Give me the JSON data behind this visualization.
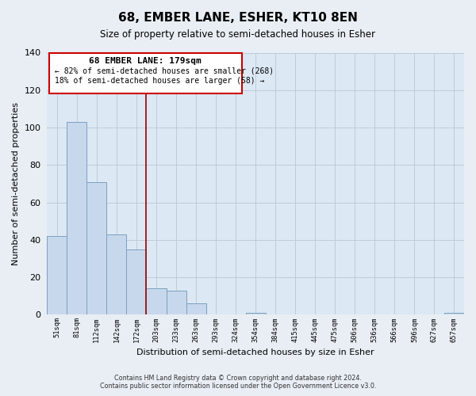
{
  "title": "68, EMBER LANE, ESHER, KT10 8EN",
  "subtitle": "Size of property relative to semi-detached houses in Esher",
  "xlabel": "Distribution of semi-detached houses by size in Esher",
  "ylabel": "Number of semi-detached properties",
  "bar_labels": [
    "51sqm",
    "81sqm",
    "112sqm",
    "142sqm",
    "172sqm",
    "203sqm",
    "233sqm",
    "263sqm",
    "293sqm",
    "324sqm",
    "354sqm",
    "384sqm",
    "415sqm",
    "445sqm",
    "475sqm",
    "506sqm",
    "536sqm",
    "566sqm",
    "596sqm",
    "627sqm",
    "657sqm"
  ],
  "bar_values": [
    42,
    103,
    71,
    43,
    35,
    14,
    13,
    6,
    0,
    0,
    1,
    0,
    0,
    0,
    0,
    0,
    0,
    0,
    0,
    0,
    1
  ],
  "bar_color": "#c8d8ec",
  "bar_edge_color": "#7ba0c0",
  "vline_x": 4.5,
  "vline_color": "#990000",
  "annotation_title": "68 EMBER LANE: 179sqm",
  "annotation_line1": "← 82% of semi-detached houses are smaller (268)",
  "annotation_line2": "18% of semi-detached houses are larger (58) →",
  "ylim": [
    0,
    140
  ],
  "yticks": [
    0,
    20,
    40,
    60,
    80,
    100,
    120,
    140
  ],
  "footer_line1": "Contains HM Land Registry data © Crown copyright and database right 2024.",
  "footer_line2": "Contains public sector information licensed under the Open Government Licence v3.0.",
  "background_color": "#e8eef4",
  "plot_background_color": "#dce8f4"
}
